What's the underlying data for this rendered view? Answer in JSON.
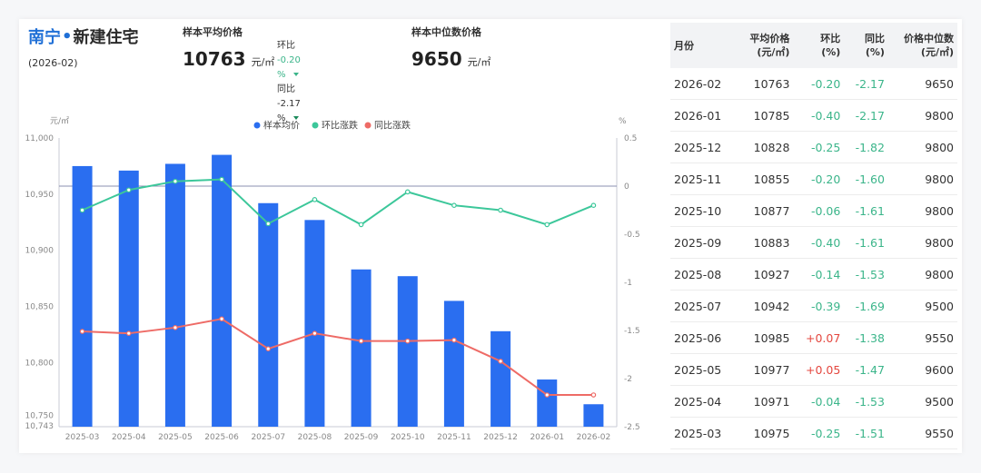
{
  "header": {
    "city": "南宁",
    "dot": "•",
    "title_rest": "新建住宅",
    "period": "(2026-02)"
  },
  "metric_avg": {
    "label": "样本平均价格",
    "value": "10763",
    "unit": "元/㎡",
    "mom_label": "环比",
    "mom_value": "-0.20 %",
    "yoy_label": "同比",
    "yoy_value": "-2.17 %"
  },
  "metric_median": {
    "label": "样本中位数价格",
    "value": "9650",
    "unit": "元/㎡"
  },
  "colors": {
    "bar": "#2a6ef0",
    "mom": "#3cc79a",
    "yoy": "#ee6b66",
    "text_green": "#3bb58a",
    "text_red": "#e4473f"
  },
  "chart_data": {
    "type": "bar",
    "categories": [
      "2025-03",
      "2025-04",
      "2025-05",
      "2025-06",
      "2025-07",
      "2025-08",
      "2025-09",
      "2025-10",
      "2025-11",
      "2025-12",
      "2026-01",
      "2026-02"
    ],
    "legend": [
      "样本均价",
      "环比涨跌",
      "同比涨跌"
    ],
    "left_axis_unit": "元/㎡",
    "right_axis_unit": "%",
    "ylim_left": [
      10743,
      11000
    ],
    "yticks_left": [
      "11,000",
      "10,950",
      "10,900",
      "10,850",
      "10,800",
      "10,750",
      "10,743"
    ],
    "ytick_values_left": [
      11000,
      10950,
      10900,
      10850,
      10800,
      10750,
      10743
    ],
    "ylim_right": [
      -2.5,
      0.5
    ],
    "yticks_right": [
      "0.5",
      "0",
      "-0.5",
      "-1",
      "-1.5",
      "-2",
      "-2.5"
    ],
    "ytick_values_right": [
      0.5,
      0,
      -0.5,
      -1,
      -1.5,
      -2,
      -2.5
    ],
    "series": [
      {
        "name": "样本均价",
        "kind": "bar",
        "axis": "left",
        "values": [
          10975,
          10971,
          10977,
          10985,
          10942,
          10927,
          10883,
          10877,
          10855,
          10828,
          10785,
          10763
        ]
      },
      {
        "name": "环比涨跌",
        "kind": "line",
        "axis": "right",
        "values": [
          -0.25,
          -0.04,
          0.05,
          0.07,
          -0.39,
          -0.14,
          -0.4,
          -0.06,
          -0.2,
          -0.25,
          -0.4,
          -0.2
        ]
      },
      {
        "name": "同比涨跌",
        "kind": "line",
        "axis": "right",
        "values": [
          -1.51,
          -1.53,
          -1.47,
          -1.38,
          -1.69,
          -1.53,
          -1.61,
          -1.61,
          -1.6,
          -1.82,
          -2.17,
          -2.17
        ]
      }
    ]
  },
  "table": {
    "headers": [
      {
        "l1": "月份",
        "l2": ""
      },
      {
        "l1": "平均价格",
        "l2": "(元/㎡)"
      },
      {
        "l1": "环比",
        "l2": "(%)"
      },
      {
        "l1": "同比",
        "l2": "(%)"
      },
      {
        "l1": "价格中位数",
        "l2": "(元/㎡)"
      }
    ],
    "rows": [
      [
        "2026-02",
        "10763",
        "-0.20",
        "-2.17",
        "9650"
      ],
      [
        "2026-01",
        "10785",
        "-0.40",
        "-2.17",
        "9800"
      ],
      [
        "2025-12",
        "10828",
        "-0.25",
        "-1.82",
        "9800"
      ],
      [
        "2025-11",
        "10855",
        "-0.20",
        "-1.60",
        "9800"
      ],
      [
        "2025-10",
        "10877",
        "-0.06",
        "-1.61",
        "9800"
      ],
      [
        "2025-09",
        "10883",
        "-0.40",
        "-1.61",
        "9800"
      ],
      [
        "2025-08",
        "10927",
        "-0.14",
        "-1.53",
        "9800"
      ],
      [
        "2025-07",
        "10942",
        "-0.39",
        "-1.69",
        "9500"
      ],
      [
        "2025-06",
        "10985",
        "+0.07",
        "-1.38",
        "9550"
      ],
      [
        "2025-05",
        "10977",
        "+0.05",
        "-1.47",
        "9600"
      ],
      [
        "2025-04",
        "10971",
        "-0.04",
        "-1.53",
        "9500"
      ],
      [
        "2025-03",
        "10975",
        "-0.25",
        "-1.51",
        "9550"
      ]
    ]
  }
}
